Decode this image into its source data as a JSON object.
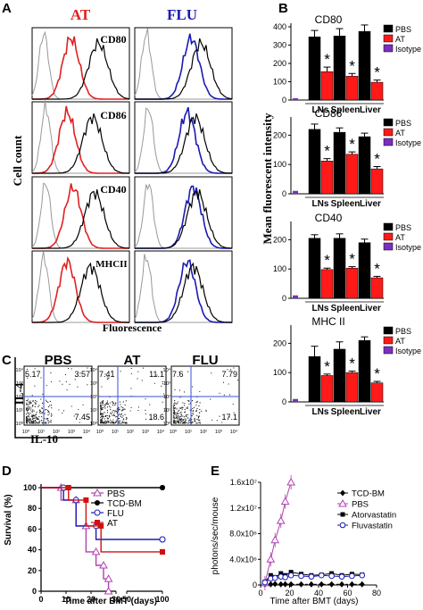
{
  "panels": {
    "a": "A",
    "b": "B",
    "c": "C",
    "d": "D",
    "e": "E"
  },
  "panel_a": {
    "col_labels": [
      "AT",
      "FLU"
    ],
    "col_colors": [
      "#e02020",
      "#1a1ab4"
    ],
    "row_markers": [
      "CD80",
      "CD86",
      "CD40",
      "MHCII"
    ],
    "ylabel": "Cell count",
    "xlabel": "Fluorescence"
  },
  "chart_data": [
    {
      "type": "bar",
      "panel": "B",
      "ylabel": "Mean fluorescent intensity",
      "categories": [
        "LNs",
        "Spleen",
        "Liver"
      ],
      "legend": [
        "PBS",
        "AT",
        "Isotype"
      ],
      "colors": {
        "PBS": "#000000",
        "AT": "#ff1a1a",
        "Isotype": "#7b2fc0"
      },
      "subplots": [
        {
          "title": "CD80",
          "ylim": [
            0,
            400
          ],
          "yticks": [
            0,
            100,
            200,
            300,
            400
          ],
          "series": [
            {
              "name": "PBS",
              "values": [
                345,
                350,
                375
              ],
              "err": [
                35,
                40,
                35
              ]
            },
            {
              "name": "AT",
              "values": [
                155,
                130,
                97
              ],
              "err": [
                25,
                15,
                12
              ]
            },
            {
              "name": "Isotype",
              "values": [
                5,
                0,
                0
              ],
              "err": [
                0,
                0,
                0
              ]
            }
          ],
          "sig": [
            "*",
            "*",
            "*"
          ]
        },
        {
          "title": "CD86",
          "ylim": [
            0,
            250
          ],
          "yticks": [
            0,
            100,
            200
          ],
          "series": [
            {
              "name": "PBS",
              "values": [
                220,
                210,
                195
              ],
              "err": [
                18,
                15,
                12
              ]
            },
            {
              "name": "AT",
              "values": [
                112,
                135,
                85
              ],
              "err": [
                8,
                8,
                8
              ]
            },
            {
              "name": "Isotype",
              "values": [
                5,
                0,
                0
              ],
              "err": [
                0,
                0,
                0
              ]
            }
          ],
          "sig": [
            "*",
            "*",
            "*"
          ]
        },
        {
          "title": "CD40",
          "ylim": [
            0,
            250
          ],
          "yticks": [
            0,
            100,
            200
          ],
          "series": [
            {
              "name": "PBS",
              "values": [
                205,
                205,
                190
              ],
              "err": [
                12,
                15,
                12
              ]
            },
            {
              "name": "AT",
              "values": [
                98,
                103,
                70
              ],
              "err": [
                5,
                5,
                5
              ]
            },
            {
              "name": "Isotype",
              "values": [
                5,
                0,
                0
              ],
              "err": [
                0,
                0,
                0
              ]
            }
          ],
          "sig": [
            "*",
            "*",
            "*"
          ]
        },
        {
          "title": "MHC II",
          "ylim": [
            0,
            250
          ],
          "yticks": [
            0,
            100,
            200
          ],
          "series": [
            {
              "name": "PBS",
              "values": [
                155,
                180,
                210
              ],
              "err": [
                35,
                25,
                12
              ]
            },
            {
              "name": "AT",
              "values": [
                90,
                100,
                65
              ],
              "err": [
                5,
                5,
                5
              ]
            },
            {
              "name": "Isotype",
              "values": [
                5,
                0,
                0
              ],
              "err": [
                0,
                0,
                0
              ]
            }
          ],
          "sig": [
            "*",
            "*",
            "*"
          ]
        }
      ]
    },
    {
      "type": "scatter",
      "panel": "C",
      "ylabel": "IL-4",
      "xlabel": "IL-10",
      "tick_labels": [
        "10⁰",
        "10¹",
        "10²",
        "10³",
        "10⁴"
      ],
      "plots": [
        {
          "title": "PBS",
          "ul": "5.17",
          "ur": "3.57",
          "lr": "7.45"
        },
        {
          "title": "AT",
          "ul": "7.41",
          "ur": "11.1",
          "lr": "18.6"
        },
        {
          "title": "FLU",
          "ul": "7.6",
          "ur": "7.79",
          "lr": "17.1"
        }
      ]
    },
    {
      "type": "line",
      "panel": "D",
      "ylabel": "Survival (%)",
      "xlabel": "Time after BMT (days)",
      "yticks": [
        0,
        20,
        40,
        60,
        80,
        100
      ],
      "xticks": [
        0,
        10,
        20,
        30,
        50,
        100
      ],
      "legend": [
        "PBS",
        "TCD-BM",
        "FLU",
        "AT"
      ],
      "series": [
        {
          "name": "PBS",
          "color": "#b040b0",
          "points": [
            [
              0,
              100
            ],
            [
              8,
              100
            ],
            [
              8,
              88
            ],
            [
              14,
              88
            ],
            [
              14,
              63
            ],
            [
              18,
              63
            ],
            [
              18,
              38
            ],
            [
              22,
              38
            ],
            [
              22,
              25
            ],
            [
              25,
              25
            ],
            [
              25,
              12
            ],
            [
              27,
              12
            ],
            [
              27,
              0
            ]
          ]
        },
        {
          "name": "TCD-BM",
          "color": "#000000",
          "points": [
            [
              0,
              100
            ],
            [
              100,
              100
            ]
          ]
        },
        {
          "name": "FLU",
          "color": "#1a1ab4",
          "points": [
            [
              0,
              100
            ],
            [
              9,
              100
            ],
            [
              9,
              88
            ],
            [
              14,
              88
            ],
            [
              14,
              63
            ],
            [
              22,
              63
            ],
            [
              22,
              50
            ],
            [
              100,
              50
            ]
          ]
        },
        {
          "name": "AT",
          "color": "#d01010",
          "points": [
            [
              0,
              100
            ],
            [
              11,
              100
            ],
            [
              11,
              88
            ],
            [
              18,
              88
            ],
            [
              18,
              63
            ],
            [
              24,
              63
            ],
            [
              24,
              38
            ],
            [
              100,
              38
            ]
          ]
        }
      ]
    },
    {
      "type": "line",
      "panel": "E",
      "ylabel": "photons/sec/mouse",
      "xlabel": "Time after BMT (days)",
      "xlim": [
        0,
        80
      ],
      "ylim": [
        0,
        16000000
      ],
      "xticks": [
        0,
        20,
        40,
        60,
        80
      ],
      "ytick_labels": [
        "0",
        "4.0x10⁶",
        "8.0x10⁶",
        "1.2x10⁷",
        "1.6x10⁷"
      ],
      "legend": [
        "TCD-BM",
        "PBS",
        "Atorvastatin",
        "Fluvastatin"
      ],
      "series": [
        {
          "name": "TCD-BM",
          "color": "#000000",
          "x": [
            3,
            7,
            10,
            14,
            17,
            21,
            28,
            35,
            42,
            49,
            56,
            63,
            70
          ],
          "y": [
            100000,
            100000,
            150000,
            100000,
            120000,
            100000,
            100000,
            100000,
            100000,
            100000,
            100000,
            100000,
            100000
          ]
        },
        {
          "name": "PBS",
          "color": "#b040b0",
          "x": [
            3,
            7,
            10,
            14,
            17,
            21
          ],
          "y": [
            300000,
            4000000,
            7000000,
            10000000,
            13000000,
            16000000
          ]
        },
        {
          "name": "Atorvastatin",
          "color": "#000000",
          "x": [
            3,
            7,
            10,
            14,
            17,
            21,
            28,
            35,
            42,
            49,
            56,
            63,
            70
          ],
          "y": [
            500000,
            1500000,
            1200000,
            1800000,
            1500000,
            2000000,
            1700000,
            1500000,
            1600000,
            1800000,
            1500000,
            1700000,
            1600000
          ]
        },
        {
          "name": "Fluvastatin",
          "color": "#1a1ab4",
          "x": [
            3,
            7,
            10,
            14,
            17,
            21,
            28,
            35,
            42,
            49,
            56,
            63,
            70
          ],
          "y": [
            400000,
            1000000,
            1100000,
            1300000,
            1200000,
            1500000,
            1400000,
            1300000,
            1500000,
            1400000,
            1300000,
            1400000,
            1500000
          ]
        }
      ]
    }
  ]
}
